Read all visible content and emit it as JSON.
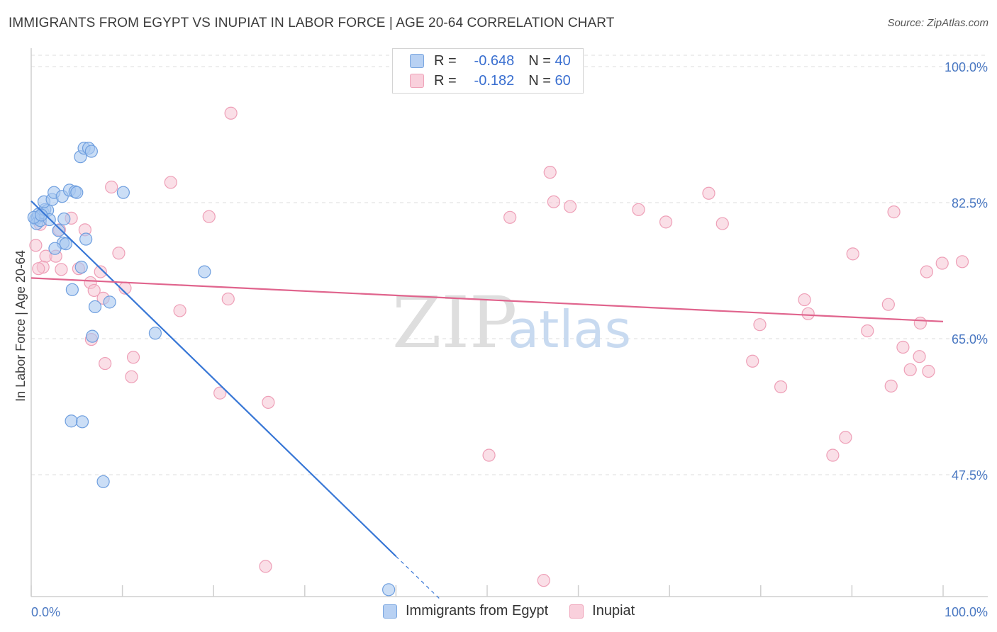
{
  "title": "IMMIGRANTS FROM EGYPT VS INUPIAT IN LABOR FORCE | AGE 20-64 CORRELATION CHART",
  "source": "Source: ZipAtlas.com",
  "watermark": {
    "zip": "ZIP",
    "atlas": "atlas"
  },
  "legend_top": {
    "rows": [
      {
        "r_label": "R =",
        "r_value": "-0.648",
        "n_label": "N =",
        "n_value": "40"
      },
      {
        "r_label": "R =",
        "r_value": "-0.182",
        "n_label": "N =",
        "n_value": "60"
      }
    ]
  },
  "legend_bottom": {
    "egypt": "Immigrants from Egypt",
    "inupiat": "Inupiat"
  },
  "colors": {
    "egypt_fill": "#a9c8f0",
    "egypt_stroke": "#6f9fdf",
    "egypt_line": "#3877d6",
    "inupiat_fill": "#f6c4d3",
    "inupiat_stroke": "#ee9fb7",
    "inupiat_line": "#e0648d",
    "tick": "#4a78c2",
    "grid": "#dddddd"
  },
  "chart_data": {
    "type": "scatter",
    "xlabel": "",
    "ylabel": "In Labor Force | Age 20-64",
    "xlim": [
      0,
      100
    ],
    "ylim": [
      32,
      102
    ],
    "y_ticks": [
      {
        "value": 100,
        "label": "100.0%"
      },
      {
        "value": 82.5,
        "label": "82.5%"
      },
      {
        "value": 65,
        "label": "65.0%"
      },
      {
        "value": 47.5,
        "label": "47.5%"
      }
    ],
    "x_tick_labels": {
      "min": "0.0%",
      "max": "100.0%"
    },
    "series": [
      {
        "name": "Immigrants from Egypt",
        "R": -0.648,
        "N": 40,
        "trend": {
          "x0": 0,
          "y0": 82.7,
          "x1": 40,
          "y1": 37.0,
          "dash_to_x": 45
        },
        "points": [
          [
            0.5,
            80.4
          ],
          [
            0.7,
            80.6
          ],
          [
            0.8,
            81.0
          ],
          [
            0.6,
            79.8
          ],
          [
            1.0,
            80.2
          ],
          [
            1.3,
            81.2
          ],
          [
            1.5,
            81.6
          ],
          [
            1.8,
            81.5
          ],
          [
            2.0,
            80.3
          ],
          [
            1.4,
            82.6
          ],
          [
            2.3,
            82.9
          ],
          [
            2.5,
            83.8
          ],
          [
            3.4,
            83.3
          ],
          [
            3.0,
            78.9
          ],
          [
            3.6,
            80.4
          ],
          [
            3.5,
            77.3
          ],
          [
            3.8,
            77.2
          ],
          [
            2.6,
            76.6
          ],
          [
            4.2,
            84.1
          ],
          [
            4.8,
            83.9
          ],
          [
            5.0,
            83.8
          ],
          [
            5.4,
            88.4
          ],
          [
            5.8,
            89.5
          ],
          [
            6.3,
            89.5
          ],
          [
            6.6,
            89.1
          ],
          [
            10.1,
            83.8
          ],
          [
            6.0,
            77.8
          ],
          [
            5.5,
            74.2
          ],
          [
            4.5,
            71.3
          ],
          [
            7.0,
            69.1
          ],
          [
            8.6,
            69.7
          ],
          [
            6.7,
            65.3
          ],
          [
            13.6,
            65.7
          ],
          [
            19.0,
            73.6
          ],
          [
            4.4,
            54.4
          ],
          [
            5.6,
            54.3
          ],
          [
            7.9,
            46.6
          ],
          [
            39.2,
            32.7
          ],
          [
            0.3,
            80.6
          ],
          [
            1.1,
            80.9
          ]
        ]
      },
      {
        "name": "Inupiat",
        "R": -0.182,
        "N": 60,
        "trend": {
          "x0": 0,
          "y0": 72.8,
          "x1": 100,
          "y1": 67.2
        },
        "points": [
          [
            0.5,
            77.0
          ],
          [
            1.0,
            79.7
          ],
          [
            1.6,
            75.6
          ],
          [
            1.3,
            74.2
          ],
          [
            2.7,
            75.6
          ],
          [
            3.1,
            79.0
          ],
          [
            4.4,
            80.5
          ],
          [
            5.2,
            74.0
          ],
          [
            5.9,
            79.0
          ],
          [
            6.5,
            72.2
          ],
          [
            6.6,
            64.9
          ],
          [
            7.6,
            73.6
          ],
          [
            7.9,
            70.2
          ],
          [
            8.1,
            61.8
          ],
          [
            8.8,
            84.5
          ],
          [
            9.6,
            76.0
          ],
          [
            10.3,
            71.5
          ],
          [
            11.0,
            60.1
          ],
          [
            11.2,
            62.6
          ],
          [
            15.3,
            85.1
          ],
          [
            16.3,
            68.6
          ],
          [
            19.5,
            80.7
          ],
          [
            20.7,
            58.0
          ],
          [
            21.6,
            70.1
          ],
          [
            21.9,
            94.0
          ],
          [
            26.0,
            56.8
          ],
          [
            25.7,
            35.7
          ],
          [
            50.2,
            50.0
          ],
          [
            52.5,
            80.6
          ],
          [
            56.2,
            33.9
          ],
          [
            56.9,
            86.4
          ],
          [
            57.3,
            82.6
          ],
          [
            59.1,
            82.0
          ],
          [
            66.6,
            81.6
          ],
          [
            69.6,
            80.0
          ],
          [
            74.3,
            83.7
          ],
          [
            75.8,
            79.8
          ],
          [
            79.1,
            62.1
          ],
          [
            79.9,
            66.8
          ],
          [
            82.2,
            58.8
          ],
          [
            84.8,
            70.0
          ],
          [
            85.2,
            68.2
          ],
          [
            87.9,
            50.0
          ],
          [
            89.3,
            52.3
          ],
          [
            90.1,
            75.9
          ],
          [
            91.7,
            66.0
          ],
          [
            94.0,
            69.4
          ],
          [
            94.3,
            58.9
          ],
          [
            94.6,
            81.3
          ],
          [
            95.6,
            63.9
          ],
          [
            96.4,
            61.0
          ],
          [
            97.4,
            62.7
          ],
          [
            97.5,
            67.0
          ],
          [
            98.2,
            73.6
          ],
          [
            98.4,
            60.8
          ],
          [
            99.9,
            74.7
          ],
          [
            102.1,
            74.9
          ],
          [
            0.8,
            74.0
          ],
          [
            3.3,
            73.9
          ],
          [
            6.9,
            71.2
          ]
        ]
      }
    ]
  }
}
